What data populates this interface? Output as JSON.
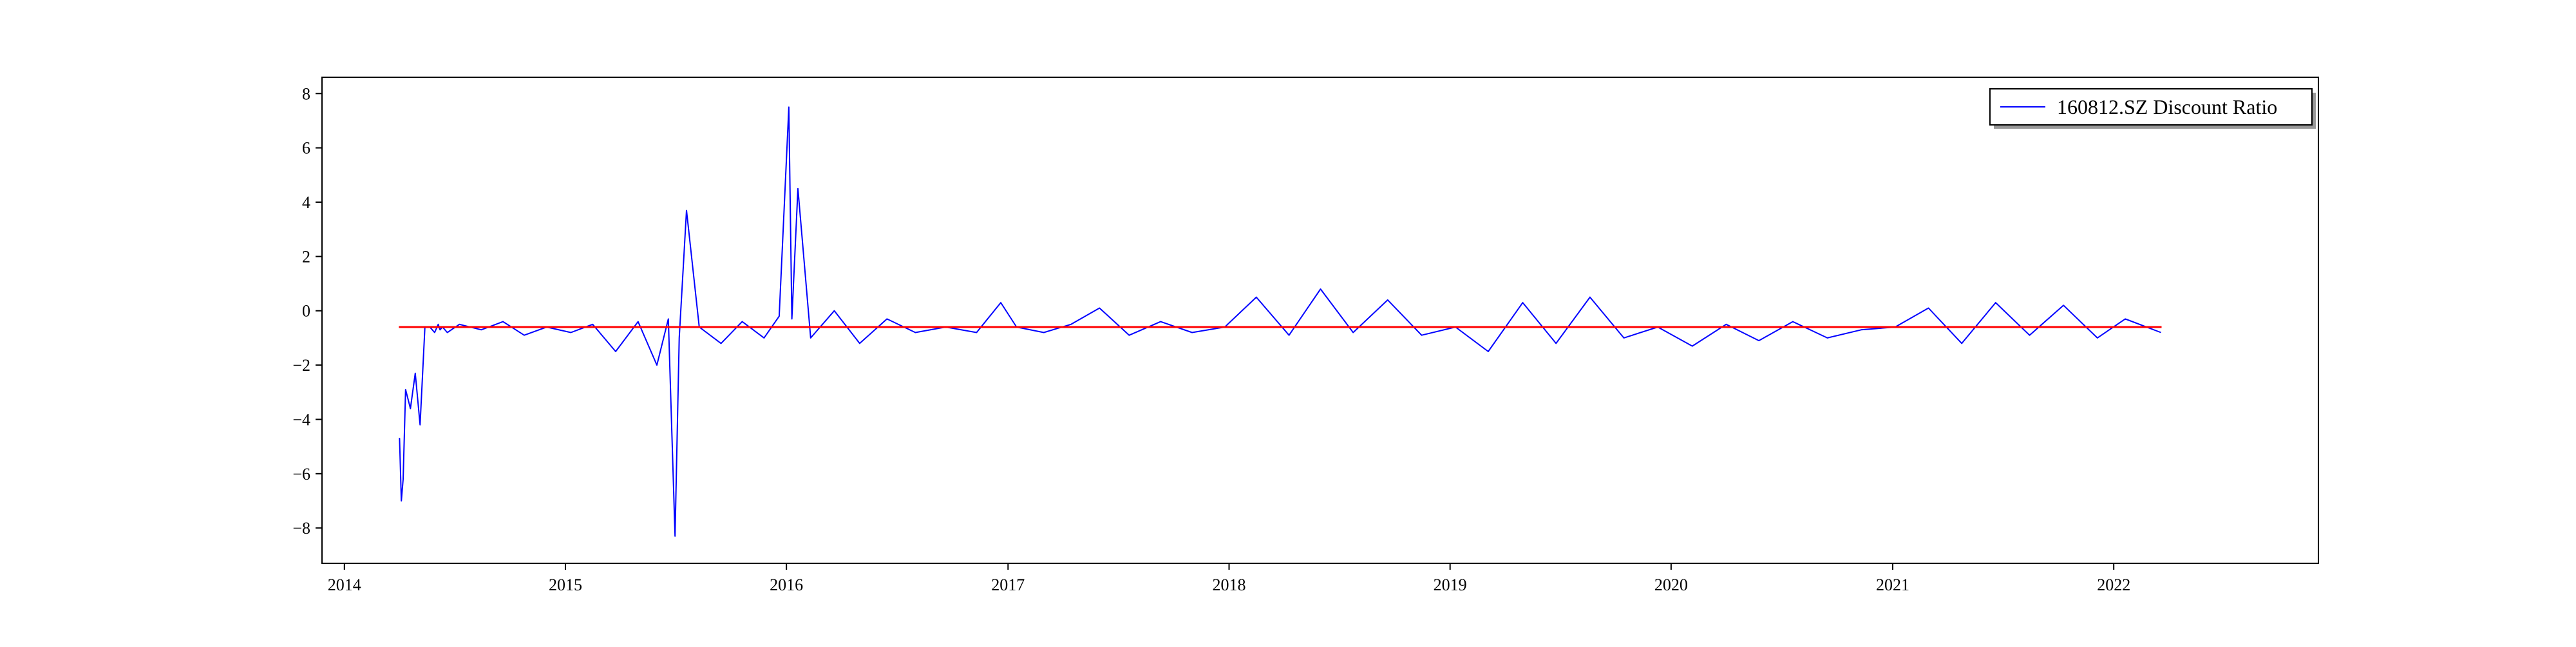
{
  "chart_data": {
    "type": "line",
    "title": "",
    "xlabel": "",
    "ylabel": "",
    "x_range": [
      "2014-01-01",
      "2022-12-31"
    ],
    "xlim": [
      "2013-11-25",
      "2022-12-05"
    ],
    "ylim": [
      -9.3,
      8.6
    ],
    "x_ticks": [
      "2014",
      "2015",
      "2016",
      "2017",
      "2018",
      "2019",
      "2020",
      "2021",
      "2022"
    ],
    "y_ticks": [
      -8,
      -6,
      -4,
      -2,
      0,
      2,
      4,
      6,
      8
    ],
    "grid": false,
    "legend_position": "top-right",
    "series": [
      {
        "name": "160812.SZ Discount Ratio",
        "color": "#0000ff",
        "x": [
          "2014-04-01",
          "2014-04-02",
          "2014-04-05",
          "2014-04-08",
          "2014-04-12",
          "2014-04-20",
          "2014-04-28",
          "2014-05-06",
          "2014-05-14",
          "2014-05-22",
          "2014-05-30",
          "2014-06-05",
          "2014-06-08",
          "2014-06-12",
          "2014-06-20",
          "2014-07-10",
          "2014-08-15",
          "2014-09-20",
          "2014-10-25",
          "2014-12-01",
          "2015-01-10",
          "2015-02-15",
          "2015-03-25",
          "2015-05-01",
          "2015-06-01",
          "2015-06-20",
          "2015-07-01",
          "2015-07-08",
          "2015-07-20",
          "2015-08-10",
          "2015-09-15",
          "2015-10-20",
          "2015-11-25",
          "2015-12-20",
          "2016-01-05",
          "2016-01-10",
          "2016-01-20",
          "2016-02-10",
          "2016-03-20",
          "2016-05-01",
          "2016-06-15",
          "2016-08-01",
          "2016-09-20",
          "2016-11-10",
          "2016-12-20",
          "2017-01-15",
          "2017-03-01",
          "2017-04-15",
          "2017-06-01",
          "2017-07-20",
          "2017-09-10",
          "2017-11-01",
          "2017-12-25",
          "2018-02-15",
          "2018-04-10",
          "2018-06-01",
          "2018-07-25",
          "2018-09-20",
          "2018-11-15",
          "2019-01-10",
          "2019-03-05",
          "2019-05-01",
          "2019-06-25",
          "2019-08-20",
          "2019-10-15",
          "2019-12-10",
          "2020-02-05",
          "2020-04-01",
          "2020-05-25",
          "2020-07-20",
          "2020-09-15",
          "2020-11-10",
          "2021-01-05",
          "2021-03-01",
          "2021-04-25",
          "2021-06-20",
          "2021-08-15",
          "2021-10-10",
          "2021-12-05",
          "2022-01-20",
          "2022-03-20"
        ],
        "y": [
          -4.7,
          -4.7,
          -7.0,
          -6.2,
          -2.9,
          -3.6,
          -2.3,
          -4.2,
          -0.6,
          -0.6,
          -0.8,
          -0.5,
          -0.7,
          -0.6,
          -0.8,
          -0.5,
          -0.7,
          -0.4,
          -0.9,
          -0.6,
          -0.8,
          -0.5,
          -1.5,
          -0.4,
          -2.0,
          -0.3,
          -8.3,
          -1.0,
          3.7,
          -0.6,
          -1.2,
          -0.4,
          -1.0,
          -0.2,
          7.5,
          -0.3,
          4.5,
          -1.0,
          0.0,
          -1.2,
          -0.3,
          -0.8,
          -0.6,
          -0.8,
          0.3,
          -0.6,
          -0.8,
          -0.5,
          0.1,
          -0.9,
          -0.4,
          -0.8,
          -0.6,
          0.5,
          -0.9,
          0.8,
          -0.8,
          0.4,
          -0.9,
          -0.6,
          -1.5,
          0.3,
          -1.2,
          0.5,
          -1.0,
          -0.6,
          -1.3,
          -0.5,
          -1.1,
          -0.4,
          -1.0,
          -0.7,
          -0.6,
          0.1,
          -1.2,
          0.3,
          -0.9,
          0.2,
          -1.0,
          -0.3,
          -0.8
        ]
      },
      {
        "name": "",
        "color": "#ff0000",
        "x": [
          "2014-04-01",
          "2022-03-21"
        ],
        "y": [
          -0.6,
          -0.6
        ]
      }
    ]
  }
}
